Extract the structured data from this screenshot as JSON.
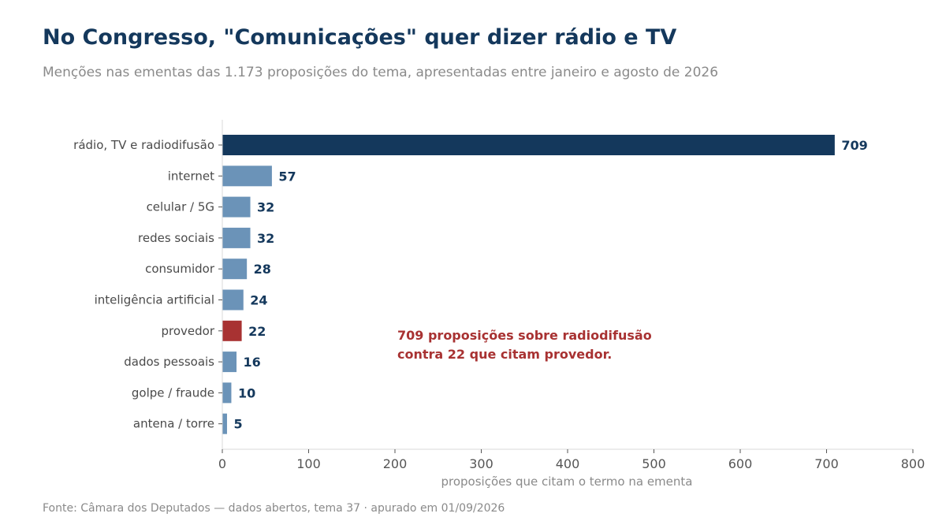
{
  "header": {
    "title": "No Congresso, \"Comunicações\" quer dizer rádio e TV",
    "subtitle": "Menções nas ementas das 1.173 proposições do tema, apresentadas entre janeiro e agosto de 2026"
  },
  "footer": {
    "source": "Fonte: Câmara dos Deputados — dados abertos, tema 37 · apurado em 01/09/2026"
  },
  "colors": {
    "highlight": "#14385c",
    "default": "#6b93b8",
    "emphasis": "#a83232",
    "value_label": "#14385c"
  },
  "chart_data": {
    "type": "bar",
    "orientation": "horizontal",
    "categories": [
      "rádio, TV e radiodifusão",
      "internet",
      "celular / 5G",
      "redes sociais",
      "consumidor",
      "inteligência artificial",
      "provedor",
      "dados pessoais",
      "golpe / fraude",
      "antena / torre"
    ],
    "values": [
      709,
      57,
      32,
      32,
      28,
      24,
      22,
      16,
      10,
      5
    ],
    "bar_colors": [
      "highlight",
      "default",
      "default",
      "default",
      "default",
      "default",
      "emphasis",
      "default",
      "default",
      "default"
    ],
    "xlabel": "proposições que citam o termo na ementa",
    "ylabel": "",
    "xlim": [
      0,
      800
    ],
    "xticks": [
      0,
      100,
      200,
      300,
      400,
      500,
      600,
      700,
      800
    ],
    "grid": false,
    "annotation": {
      "lines": [
        "709 proposições sobre radiodifusão",
        "contra 22 que citam provedor."
      ]
    }
  }
}
